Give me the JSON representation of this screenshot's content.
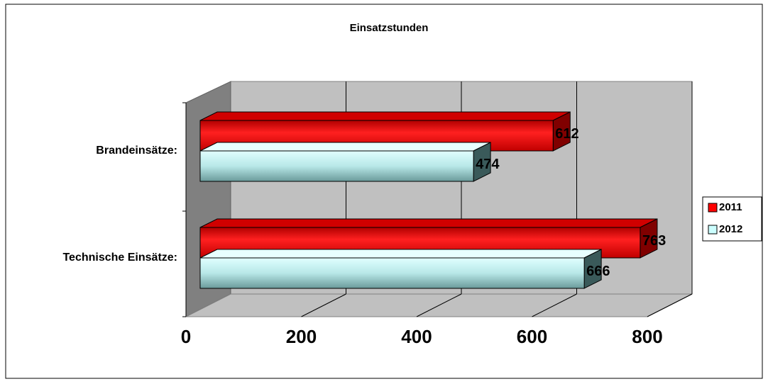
{
  "chart_data": {
    "type": "bar",
    "orientation": "horizontal",
    "title": "Einsatzstunden",
    "categories": [
      "Brandeinsätze:",
      "Technische Einsätze:"
    ],
    "series": [
      {
        "name": "2011",
        "color": "#ff0000",
        "values": [
          612,
          763
        ]
      },
      {
        "name": "2012",
        "color": "#ccffff",
        "values": [
          474,
          666
        ]
      }
    ],
    "xlim": [
      0,
      800
    ],
    "xticks": [
      0,
      200,
      400,
      600,
      800
    ],
    "grid": true,
    "legend": "right"
  }
}
